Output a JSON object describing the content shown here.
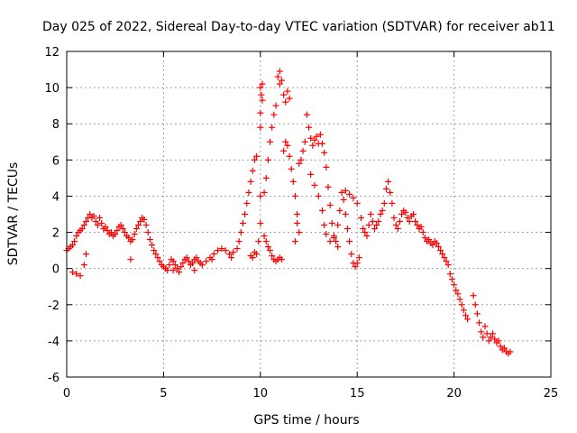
{
  "chart_data": {
    "type": "scatter",
    "title": "Day 025 of 2022, Sidereal Day-to-day VTEC variation (SDTVAR) for receiver ab11",
    "xlabel": "GPS time / hours",
    "ylabel": "SDTVAR / TECUs",
    "xlim": [
      0,
      25
    ],
    "ylim": [
      -6,
      12
    ],
    "xticks": [
      0,
      5,
      10,
      15,
      20,
      25
    ],
    "yticks": [
      -6,
      -4,
      -2,
      0,
      2,
      4,
      6,
      8,
      10,
      12
    ],
    "grid": true,
    "marker": "+",
    "color": "#ff0000",
    "series": [
      {
        "name": "SDTVAR",
        "points": [
          [
            0.0,
            1.0
          ],
          [
            0.1,
            1.1
          ],
          [
            0.2,
            1.2
          ],
          [
            0.3,
            1.3
          ],
          [
            0.4,
            1.5
          ],
          [
            0.5,
            1.8
          ],
          [
            0.6,
            2.0
          ],
          [
            0.7,
            2.1
          ],
          [
            0.8,
            2.2
          ],
          [
            0.9,
            2.4
          ],
          [
            1.0,
            2.6
          ],
          [
            1.1,
            2.8
          ],
          [
            1.2,
            3.0
          ],
          [
            1.3,
            2.8
          ],
          [
            1.4,
            2.9
          ],
          [
            1.5,
            2.6
          ],
          [
            1.6,
            2.4
          ],
          [
            1.7,
            2.8
          ],
          [
            1.8,
            2.5
          ],
          [
            1.9,
            2.2
          ],
          [
            2.0,
            2.3
          ],
          [
            2.1,
            2.1
          ],
          [
            2.2,
            1.9
          ],
          [
            2.3,
            2.0
          ],
          [
            2.4,
            1.8
          ],
          [
            2.5,
            1.9
          ],
          [
            2.6,
            2.1
          ],
          [
            2.7,
            2.3
          ],
          [
            2.8,
            2.4
          ],
          [
            2.9,
            2.2
          ],
          [
            3.0,
            2.0
          ],
          [
            3.1,
            1.8
          ],
          [
            3.2,
            1.7
          ],
          [
            3.3,
            1.5
          ],
          [
            3.4,
            1.6
          ],
          [
            3.5,
            1.9
          ],
          [
            3.6,
            2.2
          ],
          [
            3.7,
            2.4
          ],
          [
            3.8,
            2.6
          ],
          [
            3.9,
            2.8
          ],
          [
            4.0,
            2.7
          ],
          [
            4.1,
            2.4
          ],
          [
            4.2,
            2.0
          ],
          [
            4.3,
            1.6
          ],
          [
            4.4,
            1.3
          ],
          [
            4.5,
            1.0
          ],
          [
            4.6,
            0.8
          ],
          [
            4.7,
            0.6
          ],
          [
            4.8,
            0.4
          ],
          [
            4.9,
            0.2
          ],
          [
            5.0,
            0.1
          ],
          [
            5.1,
            0.0
          ],
          [
            5.2,
            -0.1
          ],
          [
            5.3,
            0.2
          ],
          [
            5.4,
            0.5
          ],
          [
            5.5,
            0.4
          ],
          [
            5.6,
            0.2
          ],
          [
            5.7,
            0.0
          ],
          [
            5.8,
            -0.2
          ],
          [
            5.9,
            0.1
          ],
          [
            6.0,
            0.3
          ],
          [
            6.1,
            0.5
          ],
          [
            6.2,
            0.6
          ],
          [
            6.3,
            0.4
          ],
          [
            6.4,
            0.2
          ],
          [
            6.5,
            0.3
          ],
          [
            6.6,
            0.5
          ],
          [
            6.7,
            0.6
          ],
          [
            6.8,
            0.4
          ],
          [
            6.9,
            0.3
          ],
          [
            7.0,
            0.2
          ],
          [
            7.2,
            0.4
          ],
          [
            7.4,
            0.6
          ],
          [
            7.6,
            0.8
          ],
          [
            7.8,
            1.0
          ],
          [
            8.0,
            1.1
          ],
          [
            8.2,
            1.0
          ],
          [
            8.4,
            0.8
          ],
          [
            8.6,
            0.9
          ],
          [
            8.8,
            1.1
          ],
          [
            8.9,
            1.5
          ],
          [
            9.0,
            2.0
          ],
          [
            9.1,
            2.5
          ],
          [
            9.2,
            3.0
          ],
          [
            9.3,
            3.6
          ],
          [
            9.4,
            4.2
          ],
          [
            9.5,
            4.8
          ],
          [
            9.6,
            5.4
          ],
          [
            9.7,
            6.0
          ],
          [
            9.8,
            6.2
          ],
          [
            9.5,
            0.7
          ],
          [
            9.6,
            0.6
          ],
          [
            9.7,
            0.9
          ],
          [
            9.8,
            0.8
          ],
          [
            9.9,
            1.5
          ],
          [
            10.0,
            2.5
          ],
          [
            10.0,
            4.0
          ],
          [
            10.0,
            7.8
          ],
          [
            10.0,
            8.6
          ],
          [
            10.0,
            10.0
          ],
          [
            10.05,
            9.6
          ],
          [
            10.1,
            10.2
          ],
          [
            10.1,
            9.3
          ],
          [
            10.2,
            4.2
          ],
          [
            10.3,
            5.0
          ],
          [
            10.4,
            6.0
          ],
          [
            10.5,
            7.0
          ],
          [
            10.6,
            7.8
          ],
          [
            10.7,
            8.5
          ],
          [
            10.8,
            9.0
          ],
          [
            10.2,
            1.8
          ],
          [
            10.3,
            1.5
          ],
          [
            10.4,
            1.2
          ],
          [
            10.5,
            1.0
          ],
          [
            10.6,
            0.7
          ],
          [
            10.7,
            0.5
          ],
          [
            10.8,
            0.4
          ],
          [
            10.9,
            0.5
          ],
          [
            11.0,
            0.6
          ],
          [
            11.1,
            0.5
          ],
          [
            10.9,
            10.6
          ],
          [
            11.0,
            10.9
          ],
          [
            11.0,
            10.2
          ],
          [
            11.1,
            10.4
          ],
          [
            11.2,
            9.6
          ],
          [
            11.3,
            9.2
          ],
          [
            11.4,
            9.8
          ],
          [
            11.5,
            9.4
          ],
          [
            11.2,
            6.5
          ],
          [
            11.3,
            7.0
          ],
          [
            11.4,
            6.8
          ],
          [
            11.5,
            6.2
          ],
          [
            11.6,
            5.5
          ],
          [
            11.7,
            4.8
          ],
          [
            11.8,
            4.0
          ],
          [
            11.9,
            3.0
          ],
          [
            12.0,
            2.0
          ],
          [
            11.8,
            1.5
          ],
          [
            11.9,
            2.5
          ],
          [
            12.0,
            5.8
          ],
          [
            12.1,
            6.0
          ],
          [
            12.2,
            6.5
          ],
          [
            12.3,
            7.0
          ],
          [
            12.4,
            8.5
          ],
          [
            12.5,
            7.8
          ],
          [
            12.6,
            7.2
          ],
          [
            12.7,
            6.8
          ],
          [
            12.8,
            7.1
          ],
          [
            12.9,
            7.3
          ],
          [
            13.0,
            6.9
          ],
          [
            13.1,
            7.4
          ],
          [
            13.2,
            6.9
          ],
          [
            13.3,
            6.4
          ],
          [
            13.4,
            5.6
          ],
          [
            13.5,
            4.5
          ],
          [
            13.6,
            3.5
          ],
          [
            13.7,
            2.5
          ],
          [
            13.8,
            1.8
          ],
          [
            13.9,
            1.5
          ],
          [
            14.0,
            1.2
          ],
          [
            12.6,
            5.2
          ],
          [
            12.8,
            4.6
          ],
          [
            13.0,
            4.0
          ],
          [
            13.2,
            3.2
          ],
          [
            13.3,
            2.4
          ],
          [
            13.4,
            1.9
          ],
          [
            13.6,
            1.5
          ],
          [
            13.8,
            1.7
          ],
          [
            14.0,
            2.4
          ],
          [
            14.1,
            3.2
          ],
          [
            14.2,
            4.2
          ],
          [
            14.3,
            3.8
          ],
          [
            14.4,
            3.0
          ],
          [
            14.5,
            2.2
          ],
          [
            14.6,
            1.5
          ],
          [
            14.7,
            0.8
          ],
          [
            14.8,
            0.3
          ],
          [
            14.9,
            0.1
          ],
          [
            15.0,
            0.3
          ],
          [
            15.1,
            0.6
          ],
          [
            14.4,
            4.3
          ],
          [
            14.6,
            4.1
          ],
          [
            14.8,
            3.9
          ],
          [
            15.0,
            3.6
          ],
          [
            15.2,
            2.8
          ],
          [
            15.3,
            2.2
          ],
          [
            15.4,
            2.0
          ],
          [
            15.5,
            1.8
          ],
          [
            15.6,
            2.4
          ],
          [
            15.7,
            3.0
          ],
          [
            15.8,
            2.6
          ],
          [
            15.9,
            2.2
          ],
          [
            16.0,
            2.4
          ],
          [
            16.1,
            2.6
          ],
          [
            16.2,
            3.0
          ],
          [
            16.3,
            3.2
          ],
          [
            16.4,
            3.6
          ],
          [
            16.5,
            4.4
          ],
          [
            16.6,
            4.8
          ],
          [
            16.7,
            4.2
          ],
          [
            16.8,
            3.6
          ],
          [
            16.9,
            2.8
          ],
          [
            17.0,
            2.4
          ],
          [
            17.1,
            2.2
          ],
          [
            17.2,
            2.6
          ],
          [
            17.3,
            3.0
          ],
          [
            17.4,
            3.2
          ],
          [
            17.5,
            3.1
          ],
          [
            17.6,
            2.8
          ],
          [
            17.7,
            2.6
          ],
          [
            17.8,
            2.9
          ],
          [
            17.9,
            3.0
          ],
          [
            18.0,
            2.6
          ],
          [
            18.1,
            2.4
          ],
          [
            18.2,
            2.2
          ],
          [
            18.3,
            2.3
          ],
          [
            18.4,
            2.0
          ],
          [
            18.5,
            1.7
          ],
          [
            18.6,
            1.5
          ],
          [
            18.7,
            1.6
          ],
          [
            18.8,
            1.4
          ],
          [
            18.9,
            1.3
          ],
          [
            19.0,
            1.5
          ],
          [
            19.1,
            1.4
          ],
          [
            19.2,
            1.2
          ],
          [
            19.3,
            1.0
          ],
          [
            19.4,
            0.8
          ],
          [
            19.5,
            0.6
          ],
          [
            19.6,
            0.4
          ],
          [
            19.7,
            0.2
          ],
          [
            19.8,
            -0.3
          ],
          [
            19.9,
            -0.6
          ],
          [
            20.0,
            -0.9
          ],
          [
            20.1,
            -1.2
          ],
          [
            20.2,
            -1.4
          ],
          [
            20.3,
            -1.7
          ],
          [
            20.4,
            -2.0
          ],
          [
            20.5,
            -2.3
          ],
          [
            20.6,
            -2.6
          ],
          [
            20.7,
            -2.8
          ],
          [
            21.0,
            -1.5
          ],
          [
            21.1,
            -2.0
          ],
          [
            21.2,
            -2.5
          ],
          [
            21.3,
            -3.0
          ],
          [
            21.4,
            -3.5
          ],
          [
            21.5,
            -3.8
          ],
          [
            21.6,
            -3.2
          ],
          [
            21.7,
            -3.6
          ],
          [
            21.8,
            -4.0
          ],
          [
            21.9,
            -3.8
          ],
          [
            22.0,
            -3.6
          ],
          [
            22.1,
            -3.9
          ],
          [
            22.2,
            -4.1
          ],
          [
            22.3,
            -4.0
          ],
          [
            22.4,
            -4.3
          ],
          [
            22.5,
            -4.5
          ],
          [
            22.6,
            -4.4
          ],
          [
            22.7,
            -4.6
          ],
          [
            22.8,
            -4.7
          ],
          [
            22.9,
            -4.6
          ],
          [
            0.3,
            -0.2
          ],
          [
            0.5,
            -0.3
          ],
          [
            0.7,
            -0.4
          ],
          [
            0.9,
            0.2
          ],
          [
            1.0,
            0.8
          ],
          [
            3.3,
            0.5
          ],
          [
            5.5,
            -0.1
          ],
          [
            6.6,
            -0.1
          ],
          [
            7.5,
            0.5
          ],
          [
            8.5,
            0.6
          ]
        ]
      }
    ]
  }
}
